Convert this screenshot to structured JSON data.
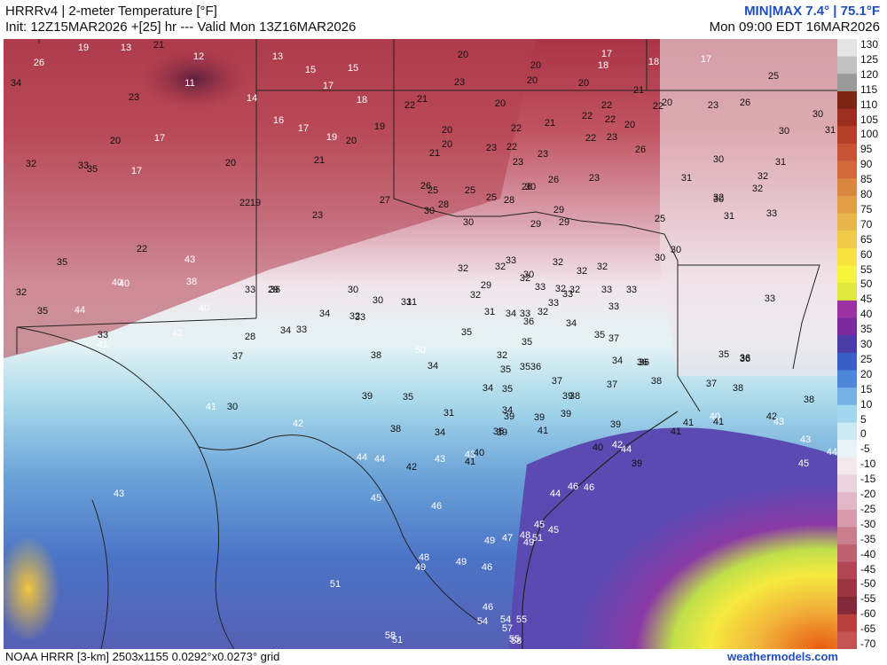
{
  "header": {
    "title": "HRRRv4 | 2-meter Temperature [°F]",
    "init_line": "Init: 12Z15MAR2026 +[25] hr --- Valid Mon 13Z16MAR2026",
    "minmax": "MIN|MAX 7.4° | 75.1°F",
    "valid_local": "Mon 09:00 EDT 16MAR2026"
  },
  "footer": {
    "model_info": "NOAA HRRR [3-km] 2503x1155 0.0292°x0.0273° grid",
    "brand": "weathermodels.com"
  },
  "colorbar": {
    "ticks": [
      "130",
      "125",
      "120",
      "115",
      "110",
      "105",
      "100",
      "95",
      "90",
      "85",
      "80",
      "75",
      "70",
      "65",
      "60",
      "55",
      "50",
      "45",
      "40",
      "35",
      "30",
      "25",
      "20",
      "15",
      "10",
      "5",
      "0",
      "-5",
      "-10",
      "-15",
      "-20",
      "-25",
      "-30",
      "-35",
      "-40",
      "-45",
      "-50",
      "-55",
      "-60",
      "-65",
      "-70"
    ],
    "colors": [
      "#e4e4e4",
      "#c2c2c2",
      "#9a9a9a",
      "#7d2515",
      "#9c2f1f",
      "#b5412a",
      "#c65538",
      "#d06a3d",
      "#d98642",
      "#e09e47",
      "#e7b54b",
      "#f0cb48",
      "#f7e23d",
      "#f6f43c",
      "#e0ea3c",
      "#9c32a2",
      "#7a2a9c",
      "#4c3ca8",
      "#3a5fc4",
      "#4e86d8",
      "#76b2e6",
      "#a3d6ef",
      "#cbeaf2",
      "#e8f4f6",
      "#f3e8ec",
      "#ecd2dc",
      "#e2b8c8",
      "#d69aab",
      "#ca7d8c",
      "#bd6070",
      "#b04553",
      "#9a3542",
      "#842939",
      "#b8403f",
      "#c25453"
    ]
  },
  "labels": [
    {
      "v": "26",
      "c": "w"
    },
    {
      "v": "19",
      "c": "w"
    },
    {
      "v": "13",
      "c": "w"
    },
    {
      "v": "21",
      "c": "k"
    },
    {
      "v": "12",
      "c": "w"
    },
    {
      "v": "13",
      "c": "w"
    },
    {
      "v": "15",
      "c": "w"
    },
    {
      "v": "15",
      "c": "w"
    },
    {
      "v": "20",
      "c": "k"
    },
    {
      "v": "20",
      "c": "k"
    },
    {
      "v": "17",
      "c": "w"
    },
    {
      "v": "18",
      "c": "w"
    },
    {
      "v": "18",
      "c": "w"
    },
    {
      "v": "17",
      "c": "w"
    },
    {
      "v": "25",
      "c": "k"
    },
    {
      "v": "34",
      "c": "k"
    },
    {
      "v": "11",
      "c": "w"
    },
    {
      "v": "23",
      "c": "k"
    },
    {
      "v": "14",
      "c": "w"
    },
    {
      "v": "17",
      "c": "w"
    },
    {
      "v": "18",
      "c": "w"
    },
    {
      "v": "23",
      "c": "k"
    },
    {
      "v": "21",
      "c": "k"
    },
    {
      "v": "22",
      "c": "k"
    },
    {
      "v": "20",
      "c": "k"
    },
    {
      "v": "20",
      "c": "k"
    },
    {
      "v": "20",
      "c": "k"
    },
    {
      "v": "21",
      "c": "k"
    },
    {
      "v": "22",
      "c": "k"
    },
    {
      "v": "20",
      "c": "k"
    },
    {
      "v": "22",
      "c": "k"
    },
    {
      "v": "22",
      "c": "k"
    },
    {
      "v": "23",
      "c": "k"
    },
    {
      "v": "26",
      "c": "k"
    },
    {
      "v": "20",
      "c": "k"
    },
    {
      "v": "17",
      "c": "w"
    },
    {
      "v": "16",
      "c": "w"
    },
    {
      "v": "17",
      "c": "w"
    },
    {
      "v": "19",
      "c": "w"
    },
    {
      "v": "19",
      "c": "k"
    },
    {
      "v": "20",
      "c": "k"
    },
    {
      "v": "20",
      "c": "k"
    },
    {
      "v": "22",
      "c": "k"
    },
    {
      "v": "21",
      "c": "k"
    },
    {
      "v": "22",
      "c": "k"
    },
    {
      "v": "20",
      "c": "k"
    },
    {
      "v": "30",
      "c": "k"
    },
    {
      "v": "31",
      "c": "k"
    },
    {
      "v": "32",
      "c": "k"
    },
    {
      "v": "33",
      "c": "k"
    },
    {
      "v": "35",
      "c": "k"
    },
    {
      "v": "17",
      "c": "w"
    },
    {
      "v": "20",
      "c": "k"
    },
    {
      "v": "21",
      "c": "k"
    },
    {
      "v": "20",
      "c": "k"
    },
    {
      "v": "21",
      "c": "k"
    },
    {
      "v": "23",
      "c": "k"
    },
    {
      "v": "22",
      "c": "k"
    },
    {
      "v": "23",
      "c": "k"
    },
    {
      "v": "23",
      "c": "k"
    },
    {
      "v": "22",
      "c": "k"
    },
    {
      "v": "23",
      "c": "k"
    },
    {
      "v": "26",
      "c": "k"
    },
    {
      "v": "30",
      "c": "k"
    },
    {
      "v": "31",
      "c": "k"
    },
    {
      "v": "30",
      "c": "k"
    },
    {
      "v": "22",
      "c": "k"
    },
    {
      "v": "19",
      "c": "k"
    },
    {
      "v": "27",
      "c": "k"
    },
    {
      "v": "26",
      "c": "k"
    },
    {
      "v": "25",
      "c": "k"
    },
    {
      "v": "25",
      "c": "k"
    },
    {
      "v": "25",
      "c": "k"
    },
    {
      "v": "26",
      "c": "k"
    },
    {
      "v": "23",
      "c": "k"
    },
    {
      "v": "26",
      "c": "k"
    },
    {
      "v": "28",
      "c": "k"
    },
    {
      "v": "30",
      "c": "k"
    },
    {
      "v": "31",
      "c": "k"
    },
    {
      "v": "32",
      "c": "k"
    },
    {
      "v": "32",
      "c": "k"
    },
    {
      "v": "22",
      "c": "k"
    },
    {
      "v": "23",
      "c": "k"
    },
    {
      "v": "30",
      "c": "k"
    },
    {
      "v": "28",
      "c": "k"
    },
    {
      "v": "30",
      "c": "k"
    },
    {
      "v": "29",
      "c": "k"
    },
    {
      "v": "29",
      "c": "k"
    },
    {
      "v": "29",
      "c": "k"
    },
    {
      "v": "32",
      "c": "k"
    },
    {
      "v": "25",
      "c": "k"
    },
    {
      "v": "30",
      "c": "k"
    },
    {
      "v": "30",
      "c": "k"
    },
    {
      "v": "31",
      "c": "k"
    },
    {
      "v": "30",
      "c": "k"
    },
    {
      "v": "33",
      "c": "k"
    },
    {
      "v": "35",
      "c": "k"
    },
    {
      "v": "43",
      "c": "w"
    },
    {
      "v": "32",
      "c": "k"
    },
    {
      "v": "32",
      "c": "k"
    },
    {
      "v": "33",
      "c": "k"
    },
    {
      "v": "30",
      "c": "k"
    },
    {
      "v": "32",
      "c": "k"
    },
    {
      "v": "32",
      "c": "k"
    },
    {
      "v": "32",
      "c": "k"
    },
    {
      "v": "32",
      "c": "k"
    },
    {
      "v": "40",
      "c": "w"
    },
    {
      "v": "40",
      "c": "w"
    },
    {
      "v": "38",
      "c": "w"
    },
    {
      "v": "33",
      "c": "k"
    },
    {
      "v": "29",
      "c": "k"
    },
    {
      "v": "30",
      "c": "k"
    },
    {
      "v": "29",
      "c": "k"
    },
    {
      "v": "32",
      "c": "k"
    },
    {
      "v": "33",
      "c": "k"
    },
    {
      "v": "32",
      "c": "k"
    },
    {
      "v": "32",
      "c": "k"
    },
    {
      "v": "33",
      "c": "k"
    },
    {
      "v": "33",
      "c": "k"
    },
    {
      "v": "33",
      "c": "k"
    },
    {
      "v": "35",
      "c": "k"
    },
    {
      "v": "44",
      "c": "w"
    },
    {
      "v": "40",
      "c": "w"
    },
    {
      "v": "36",
      "c": "k"
    },
    {
      "v": "30",
      "c": "k"
    },
    {
      "v": "31",
      "c": "k"
    },
    {
      "v": "31",
      "c": "k"
    },
    {
      "v": "32",
      "c": "k"
    },
    {
      "v": "31",
      "c": "k"
    },
    {
      "v": "34",
      "c": "k"
    },
    {
      "v": "33",
      "c": "k"
    },
    {
      "v": "32",
      "c": "k"
    },
    {
      "v": "33",
      "c": "k"
    },
    {
      "v": "33",
      "c": "k"
    },
    {
      "v": "33",
      "c": "k"
    },
    {
      "v": "33",
      "c": "k"
    },
    {
      "v": "41",
      "c": "w"
    },
    {
      "v": "42",
      "c": "w"
    },
    {
      "v": "28",
      "c": "k"
    },
    {
      "v": "34",
      "c": "k"
    },
    {
      "v": "33",
      "c": "k"
    },
    {
      "v": "34",
      "c": "k"
    },
    {
      "v": "32",
      "c": "k"
    },
    {
      "v": "33",
      "c": "k"
    },
    {
      "v": "35",
      "c": "k"
    },
    {
      "v": "36",
      "c": "k"
    },
    {
      "v": "34",
      "c": "k"
    },
    {
      "v": "35",
      "c": "k"
    },
    {
      "v": "37",
      "c": "k"
    },
    {
      "v": "38",
      "c": "k"
    },
    {
      "v": "34",
      "c": "k"
    },
    {
      "v": "32",
      "c": "k"
    },
    {
      "v": "35",
      "c": "k"
    },
    {
      "v": "35",
      "c": "k"
    },
    {
      "v": "35",
      "c": "k"
    },
    {
      "v": "36",
      "c": "k"
    },
    {
      "v": "34",
      "c": "k"
    },
    {
      "v": "36",
      "c": "k"
    },
    {
      "v": "35",
      "c": "k"
    },
    {
      "v": "36",
      "c": "k"
    },
    {
      "v": "37",
      "c": "k"
    },
    {
      "v": "36",
      "c": "k"
    },
    {
      "v": "36",
      "c": "k"
    },
    {
      "v": "34",
      "c": "k"
    },
    {
      "v": "37",
      "c": "k"
    },
    {
      "v": "37",
      "c": "k"
    },
    {
      "v": "38",
      "c": "k"
    },
    {
      "v": "37",
      "c": "k"
    },
    {
      "v": "38",
      "c": "k"
    },
    {
      "v": "39",
      "c": "k"
    },
    {
      "v": "35",
      "c": "k"
    },
    {
      "v": "35",
      "c": "k"
    },
    {
      "v": "39",
      "c": "k"
    },
    {
      "v": "38",
      "c": "k"
    },
    {
      "v": "39",
      "c": "k"
    },
    {
      "v": "38",
      "c": "k"
    },
    {
      "v": "41",
      "c": "w"
    },
    {
      "v": "30",
      "c": "k"
    },
    {
      "v": "31",
      "c": "k"
    },
    {
      "v": "34",
      "c": "k"
    },
    {
      "v": "39",
      "c": "k"
    },
    {
      "v": "39",
      "c": "k"
    },
    {
      "v": "39",
      "c": "k"
    },
    {
      "v": "41",
      "c": "k"
    },
    {
      "v": "41",
      "c": "k"
    },
    {
      "v": "40",
      "c": "w"
    },
    {
      "v": "41",
      "c": "k"
    },
    {
      "v": "42",
      "c": "k"
    },
    {
      "v": "42",
      "c": "w"
    },
    {
      "v": "38",
      "c": "k"
    },
    {
      "v": "34",
      "c": "k"
    },
    {
      "v": "35",
      "c": "k"
    },
    {
      "v": "39",
      "c": "k"
    },
    {
      "v": "41",
      "c": "k"
    },
    {
      "v": "43",
      "c": "w"
    },
    {
      "v": "43",
      "c": "w"
    },
    {
      "v": "40",
      "c": "k"
    },
    {
      "v": "40",
      "c": "k"
    },
    {
      "v": "42",
      "c": "w"
    },
    {
      "v": "44",
      "c": "w"
    },
    {
      "v": "43",
      "c": "w"
    },
    {
      "v": "44",
      "c": "w"
    },
    {
      "v": "44",
      "c": "w"
    },
    {
      "v": "43",
      "c": "w"
    },
    {
      "v": "41",
      "c": "k"
    },
    {
      "v": "42",
      "c": "k"
    },
    {
      "v": "39",
      "c": "k"
    },
    {
      "v": "45",
      "c": "w"
    },
    {
      "v": "46",
      "c": "w"
    },
    {
      "v": "44",
      "c": "w"
    },
    {
      "v": "43",
      "c": "w"
    },
    {
      "v": "45",
      "c": "w"
    },
    {
      "v": "46",
      "c": "w"
    },
    {
      "v": "44",
      "c": "w"
    },
    {
      "v": "46",
      "c": "w"
    },
    {
      "v": "45",
      "c": "w"
    },
    {
      "v": "45",
      "c": "w"
    },
    {
      "v": "48",
      "c": "w"
    },
    {
      "v": "49",
      "c": "w"
    },
    {
      "v": "49",
      "c": "w"
    },
    {
      "v": "47",
      "c": "w"
    },
    {
      "v": "48",
      "c": "w"
    },
    {
      "v": "49",
      "c": "w"
    },
    {
      "v": "51",
      "c": "w"
    },
    {
      "v": "49",
      "c": "w"
    },
    {
      "v": "46",
      "c": "w"
    },
    {
      "v": "51",
      "c": "w"
    },
    {
      "v": "46",
      "c": "w"
    },
    {
      "v": "54",
      "c": "w"
    },
    {
      "v": "54",
      "c": "w"
    },
    {
      "v": "55",
      "c": "w"
    },
    {
      "v": "57",
      "c": "w"
    },
    {
      "v": "55",
      "c": "w"
    },
    {
      "v": "58",
      "c": "w"
    },
    {
      "v": "58",
      "c": "w"
    },
    {
      "v": "51",
      "c": "w"
    },
    {
      "v": "52",
      "c": "w"
    },
    {
      "v": "50",
      "c": "w"
    }
  ]
}
